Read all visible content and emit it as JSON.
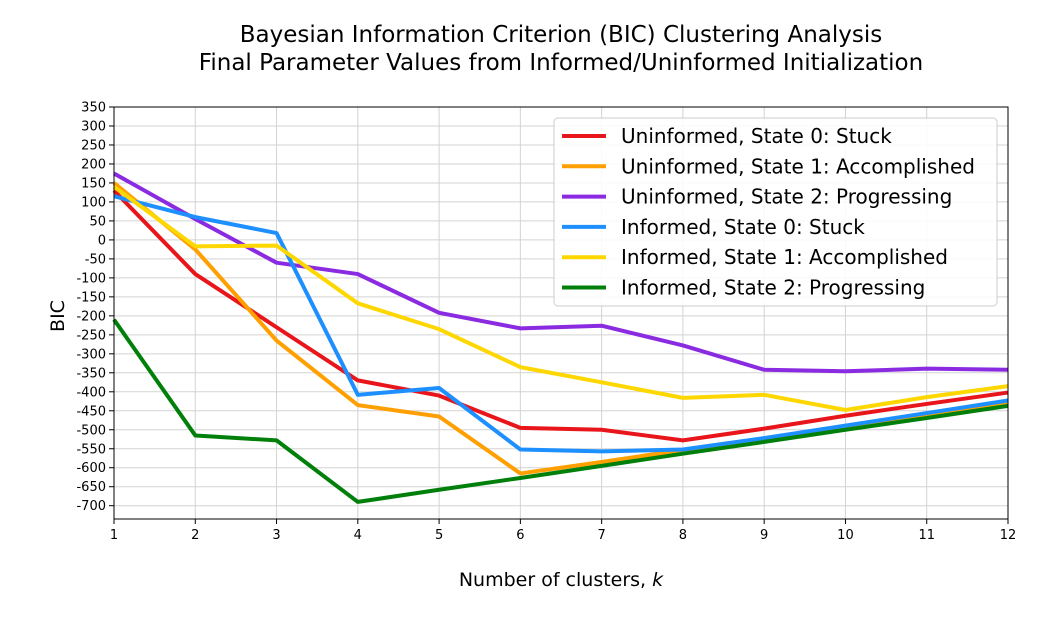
{
  "chart_data": {
    "type": "line",
    "title": "Bayesian Information Criterion (BIC) Clustering Analysis",
    "subtitle": "Final Parameter Values from Informed/Uninformed Initialization",
    "xlabel_prefix": "Number of clusters, ",
    "xlabel_var": "k",
    "ylabel": "BIC",
    "x": [
      1,
      2,
      3,
      4,
      5,
      6,
      7,
      8,
      9,
      10,
      11,
      12
    ],
    "xlim": [
      1,
      12
    ],
    "ylim": [
      -735,
      350
    ],
    "yticks": [
      350,
      300,
      250,
      200,
      150,
      100,
      50,
      0,
      -50,
      -100,
      -150,
      -200,
      -250,
      -300,
      -350,
      -400,
      -450,
      -500,
      -550,
      -600,
      -650,
      -700
    ],
    "grid": true,
    "legend_position": "upper-right",
    "series": [
      {
        "name": "Uninformed, State 0: Stuck",
        "color": "#e8151b",
        "values": [
          130,
          -90,
          -230,
          -370,
          -410,
          -495,
          -500,
          -528,
          -497,
          -463,
          -432,
          -402
        ]
      },
      {
        "name": "Uninformed, State 1: Accomplished",
        "color": "#ff9f00",
        "values": [
          150,
          -25,
          -265,
          -435,
          -465,
          -615,
          -585,
          -553,
          -524,
          -492,
          -460,
          -428
        ]
      },
      {
        "name": "Uninformed, State 2: Progressing",
        "color": "#8a2be2",
        "values": [
          175,
          55,
          -60,
          -90,
          -192,
          -233,
          -226,
          -278,
          -342,
          -346,
          -339,
          -342
        ]
      },
      {
        "name": "Informed, State 0: Stuck",
        "color": "#1e8fff",
        "values": [
          115,
          60,
          18,
          -408,
          -390,
          -552,
          -557,
          -552,
          -522,
          -489,
          -456,
          -423
        ]
      },
      {
        "name": "Informed, State 1: Accomplished",
        "color": "#ffd700",
        "values": [
          140,
          -17,
          -15,
          -167,
          -235,
          -335,
          -375,
          -416,
          -408,
          -448,
          -414,
          -385
        ]
      },
      {
        "name": "Informed, State 2: Progressing",
        "color": "#00800a",
        "values": [
          -210,
          -515,
          -528,
          -690,
          -658,
          -627,
          -595,
          -563,
          -532,
          -500,
          -469,
          -437
        ]
      }
    ]
  }
}
